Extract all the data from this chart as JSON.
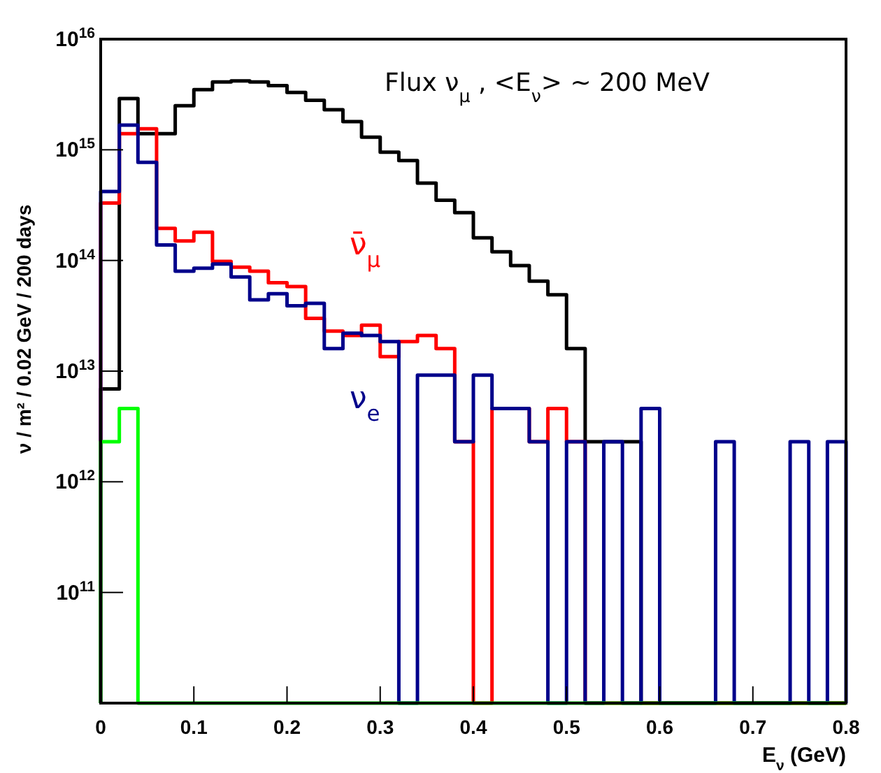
{
  "chart_data": {
    "type": "histogram",
    "annotations": [
      "Flux ν$_{μ}$ , <E$_{ν}$> ~ 200 MeV"
    ],
    "xlabel": "E$_{ν}$ (GeV)",
    "ylabel": "ν / m² / 0.02 GeV / 200 days",
    "bins": [
      0,
      0.02,
      0.04,
      0.06,
      0.08,
      0.1,
      0.12,
      0.14,
      0.16,
      0.18,
      0.2,
      0.22,
      0.24,
      0.26,
      0.28,
      0.3,
      0.32,
      0.34,
      0.36,
      0.38,
      0.4,
      0.42,
      0.44,
      0.46,
      0.48,
      0.5,
      0.52,
      0.54,
      0.56,
      0.58,
      0.6,
      0.62,
      0.64,
      0.66,
      0.68,
      0.7,
      0.72,
      0.74,
      0.76,
      0.78,
      0.8
    ],
    "series": [
      {
        "color": "#000000",
        "values": [
          6900000000000.0,
          2900000000000000.0,
          1400000000000000.0,
          1400000000000000.0,
          2500000000000000.0,
          3500000000000000.0,
          4100000000000000.0,
          4200000000000000.0,
          4100000000000000.0,
          3800000000000000.0,
          3300000000000000.0,
          2800000000000000.0,
          2300000000000000.0,
          1800000000000000.0,
          1300000000000000.0,
          950000000000000.0,
          800000000000000.0,
          500000000000000.0,
          350000000000000.0,
          270000000000000.0,
          160000000000000.0,
          120000000000000.0,
          90000000000000.0,
          65000000000000.0,
          49000000000000.0,
          16000000000000.0,
          2300000000000.0,
          2300000000000.0,
          2300000000000.0,
          null,
          null,
          null,
          null,
          null,
          null,
          null,
          null,
          null,
          null,
          null
        ]
      },
      {
        "name": "ν̄$_{μ}$",
        "color": "#ff0000",
        "values": [
          330000000000000.0,
          1400000000000000.0,
          1550000000000000.0,
          195000000000000.0,
          150000000000000.0,
          180000000000000.0,
          98000000000000.0,
          87000000000000.0,
          80000000000000.0,
          63000000000000.0,
          58000000000000.0,
          30000000000000.0,
          23000000000000.0,
          21000000000000.0,
          26000000000000.0,
          13500000000000.0,
          18500000000000.0,
          21000000000000.0,
          16000000000000.0,
          2300000000000.0,
          null,
          4600000000000.0,
          4600000000000.0,
          2300000000000.0,
          4600000000000.0,
          2300000000000.0,
          null,
          null,
          null,
          null,
          null,
          null,
          null,
          null,
          null,
          null,
          null,
          null,
          null,
          null
        ]
      },
      {
        "name": "ν$_{e}$",
        "color": "#00008b",
        "values": [
          420000000000000.0,
          1670000000000000.0,
          770000000000000.0,
          138000000000000.0,
          80000000000000.0,
          85000000000000.0,
          93000000000000.0,
          71000000000000.0,
          44000000000000.0,
          50000000000000.0,
          39000000000000.0,
          41000000000000.0,
          16000000000000.0,
          22000000000000.0,
          21000000000000.0,
          18500000000000.0,
          null,
          9200000000000.0,
          9200000000000.0,
          2300000000000.0,
          9200000000000.0,
          4600000000000.0,
          4600000000000.0,
          2300000000000.0,
          null,
          2300000000000.0,
          null,
          2300000000000.0,
          null,
          4600000000000.0,
          null,
          null,
          null,
          2300000000000.0,
          null,
          null,
          null,
          2300000000000.0,
          null,
          2300000000000.0
        ]
      },
      {
        "color": "#00ff00",
        "values": [
          2300000000000.0,
          4600000000000.0,
          null,
          null,
          null,
          null,
          null,
          null,
          null,
          null,
          null,
          null,
          null,
          null,
          null,
          null,
          null,
          null,
          null,
          null,
          null,
          null,
          null,
          null,
          null,
          null,
          null,
          null,
          null,
          null,
          null,
          null,
          null,
          null,
          null,
          null,
          null,
          null,
          null,
          null
        ]
      }
    ],
    "log": true,
    "xlim": [
      0,
      0.8
    ],
    "xticks": [
      0,
      0.1,
      0.2,
      0.3,
      0.4,
      0.5,
      0.6,
      0.7,
      0.8
    ],
    "ylim": [
      10000000000.0,
      1e+16
    ],
    "yticks": [
      {
        "value": 100000000000.0,
        "label": "10$^{11}$"
      },
      {
        "value": 1000000000000.0,
        "label": "10$^{12}$"
      },
      {
        "value": 10000000000000.0,
        "label": "10$^{13}$"
      },
      {
        "value": 100000000000000.0,
        "label": "10$^{14}$"
      },
      {
        "value": 1000000000000000.0,
        "label": "10$^{15}$"
      },
      {
        "value": 1e+16,
        "label": "10$^{16}$"
      }
    ]
  }
}
